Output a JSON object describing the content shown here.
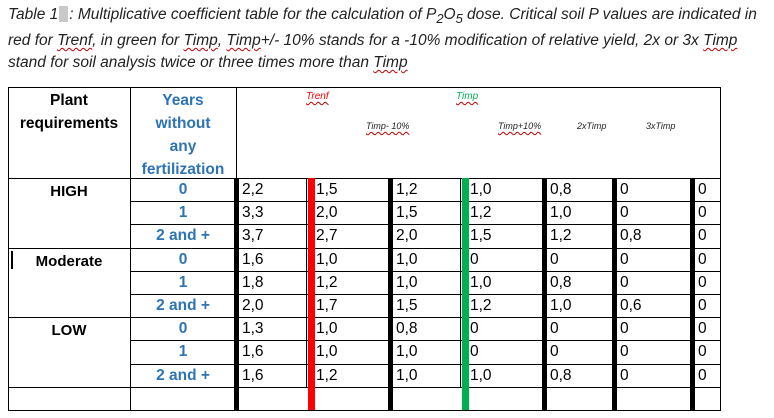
{
  "caption": {
    "prefix": "Table 1",
    "text_a": ": Multiplicative coefficient table for the calculation of P",
    "sub1": "2",
    "text_b": "O",
    "sub2": "5",
    "text_c": " dose. Critical soil P values are indicated in red for ",
    "trenf": "Trenf",
    "text_d": ", in green for ",
    "timp1": "Timp",
    "text_e": ", ",
    "timp2": "Timp",
    "text_f": "+/- 10% stands for a -10% modification of relative yield, 2x or 3x ",
    "timp3": "Timp",
    "text_g": " stand for soil analysis twice or three times more than ",
    "timp4": "Timp"
  },
  "header": {
    "plant_requirements": [
      "Plant",
      "requirements"
    ],
    "years_without_fertilization": [
      "Years",
      "without",
      "any",
      "fertilization"
    ],
    "trenf": "Trenf",
    "timp": "Timp",
    "timp_minus_10": "Timp- 10%",
    "timp_plus_10": "Timp+10%",
    "two_x_timp": "2xTimp",
    "three_x_timp": "3xTimp"
  },
  "groups": [
    "HIGH",
    "Moderate",
    "LOW"
  ],
  "colors": {
    "trenf": "#ff0000",
    "timp": "#00b050",
    "years": "#2e74b5"
  },
  "rows": [
    {
      "group": "HIGH",
      "years": "0",
      "values": [
        "2,2",
        "1,5",
        "1,2",
        "1,0",
        "0,8",
        "0",
        "0"
      ]
    },
    {
      "group": "HIGH",
      "years": "1",
      "values": [
        "3,3",
        "2,0",
        "1,5",
        "1,2",
        "1,0",
        "0",
        "0"
      ]
    },
    {
      "group": "HIGH",
      "years": "2 and +",
      "values": [
        "3,7",
        "2,7",
        "2,0",
        "1,5",
        "1,2",
        "0,8",
        "0"
      ]
    },
    {
      "group": "Moderate",
      "years": "0",
      "values": [
        "1,6",
        "1,0",
        "1,0",
        "0",
        "0",
        "0",
        "0"
      ]
    },
    {
      "group": "Moderate",
      "years": "1",
      "values": [
        "1,8",
        "1,2",
        "1,0",
        "1,0",
        "0,8",
        "0",
        "0"
      ]
    },
    {
      "group": "Moderate",
      "years": "2 and +",
      "values": [
        "2,0",
        "1,7",
        "1,5",
        "1,2",
        "1,0",
        "0,6",
        "0"
      ]
    },
    {
      "group": "LOW",
      "years": "0",
      "values": [
        "1,3",
        "1,0",
        "0,8",
        "0",
        "0",
        "0",
        "0"
      ]
    },
    {
      "group": "LOW",
      "years": "1",
      "values": [
        "1,6",
        "1,0",
        "1,0",
        "0",
        "0",
        "0",
        "0"
      ]
    },
    {
      "group": "LOW",
      "years": "2 and +",
      "values": [
        "1,6",
        "1,2",
        "1,0",
        "1,0",
        "0,8",
        "0",
        "0"
      ]
    }
  ]
}
